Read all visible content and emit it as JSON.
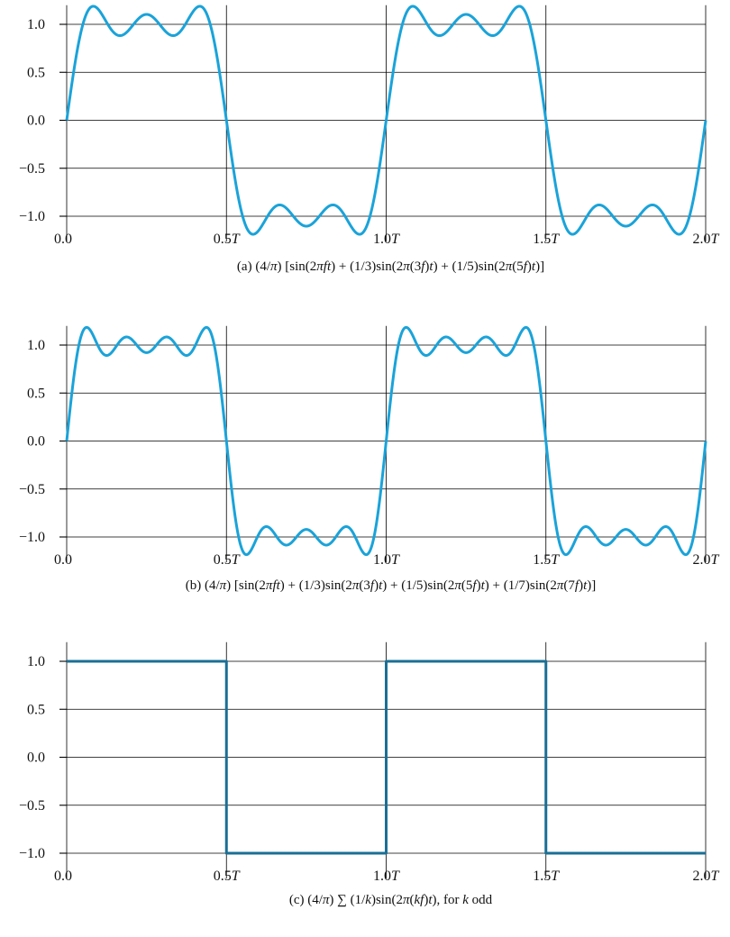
{
  "colors": {
    "curve": "#1aa3d9",
    "square": "#1a6f95",
    "grid": "#000000"
  },
  "x_tick_labels": [
    "0.0",
    "0.5T",
    "1.0T",
    "1.5T",
    "2.0T"
  ],
  "y_tick_labels": [
    "1.0",
    "0.5",
    "0.0",
    "−0.5",
    "−1.0"
  ],
  "chart_data": [
    {
      "type": "line",
      "panel": "a",
      "caption": "(a) (4/π) [sin(2πft) + (1/3)sin(2π(3f)t) + (1/5)sin(2π(5f)t)]",
      "function": "(4/π) Σ (1/k) sin(2π k f t), k ∈ {1, 3, 5}",
      "harmonics": [
        1,
        3,
        5
      ],
      "x_unit": "T",
      "xlim": [
        0,
        2
      ],
      "ylim": [
        -1.2,
        1.2
      ],
      "x_ticks": [
        0,
        0.5,
        1,
        1.5,
        2
      ],
      "y_ticks": [
        1.0,
        0.5,
        0.0,
        -0.5,
        -1.0
      ],
      "grid": true,
      "x": [
        0,
        0.0833,
        0.1667,
        0.25,
        0.3333,
        0.4167,
        0.5,
        0.5833,
        0.6667,
        0.75,
        0.8333,
        0.9167,
        1.0,
        1.0833,
        1.1667,
        1.25,
        1.3333,
        1.4167,
        1.5,
        1.5833,
        1.6667,
        1.75,
        1.8333,
        1.9167,
        2.0
      ],
      "y": [
        0,
        1.18,
        0.9,
        1.1,
        0.9,
        1.18,
        0,
        -1.18,
        -0.9,
        -1.1,
        -0.9,
        -1.18,
        0,
        1.18,
        0.9,
        1.1,
        0.9,
        1.18,
        0,
        -1.18,
        -0.9,
        -1.1,
        -0.9,
        -1.18,
        0
      ]
    },
    {
      "type": "line",
      "panel": "b",
      "caption": "(b) (4/π) [sin(2πft) + (1/3)sin(2π(3f)t) + (1/5)sin(2π(5f)t) + (1/7)sin(2π(7f)t)]",
      "function": "(4/π) Σ (1/k) sin(2π k f t), k ∈ {1, 3, 5, 7}",
      "harmonics": [
        1,
        3,
        5,
        7
      ],
      "x_unit": "T",
      "xlim": [
        0,
        2
      ],
      "ylim": [
        -1.2,
        1.2
      ],
      "x_ticks": [
        0,
        0.5,
        1,
        1.5,
        2
      ],
      "y_ticks": [
        1.0,
        0.5,
        0.0,
        -0.5,
        -1.0
      ],
      "grid": true,
      "x": [
        0,
        0.0625,
        0.125,
        0.1875,
        0.25,
        0.3125,
        0.375,
        0.4375,
        0.5
      ],
      "y": [
        0,
        1.16,
        0.9,
        1.07,
        0.92,
        1.07,
        0.9,
        1.16,
        0
      ]
    },
    {
      "type": "line",
      "panel": "c",
      "caption": "(c) (4/π) ∑ (1/k)sin(2π(kf)t), for k odd",
      "function": "square wave",
      "harmonics": "all odd k",
      "x_unit": "T",
      "xlim": [
        0,
        2
      ],
      "ylim": [
        -1.2,
        1.2
      ],
      "x_ticks": [
        0,
        0.5,
        1,
        1.5,
        2
      ],
      "y_ticks": [
        1.0,
        0.5,
        0.0,
        -0.5,
        -1.0
      ],
      "grid": true,
      "x": [
        0,
        0.5,
        0.5,
        1.0,
        1.0,
        1.5,
        1.5,
        2.0
      ],
      "y": [
        1,
        1,
        -1,
        -1,
        1,
        1,
        -1,
        -1
      ]
    }
  ]
}
